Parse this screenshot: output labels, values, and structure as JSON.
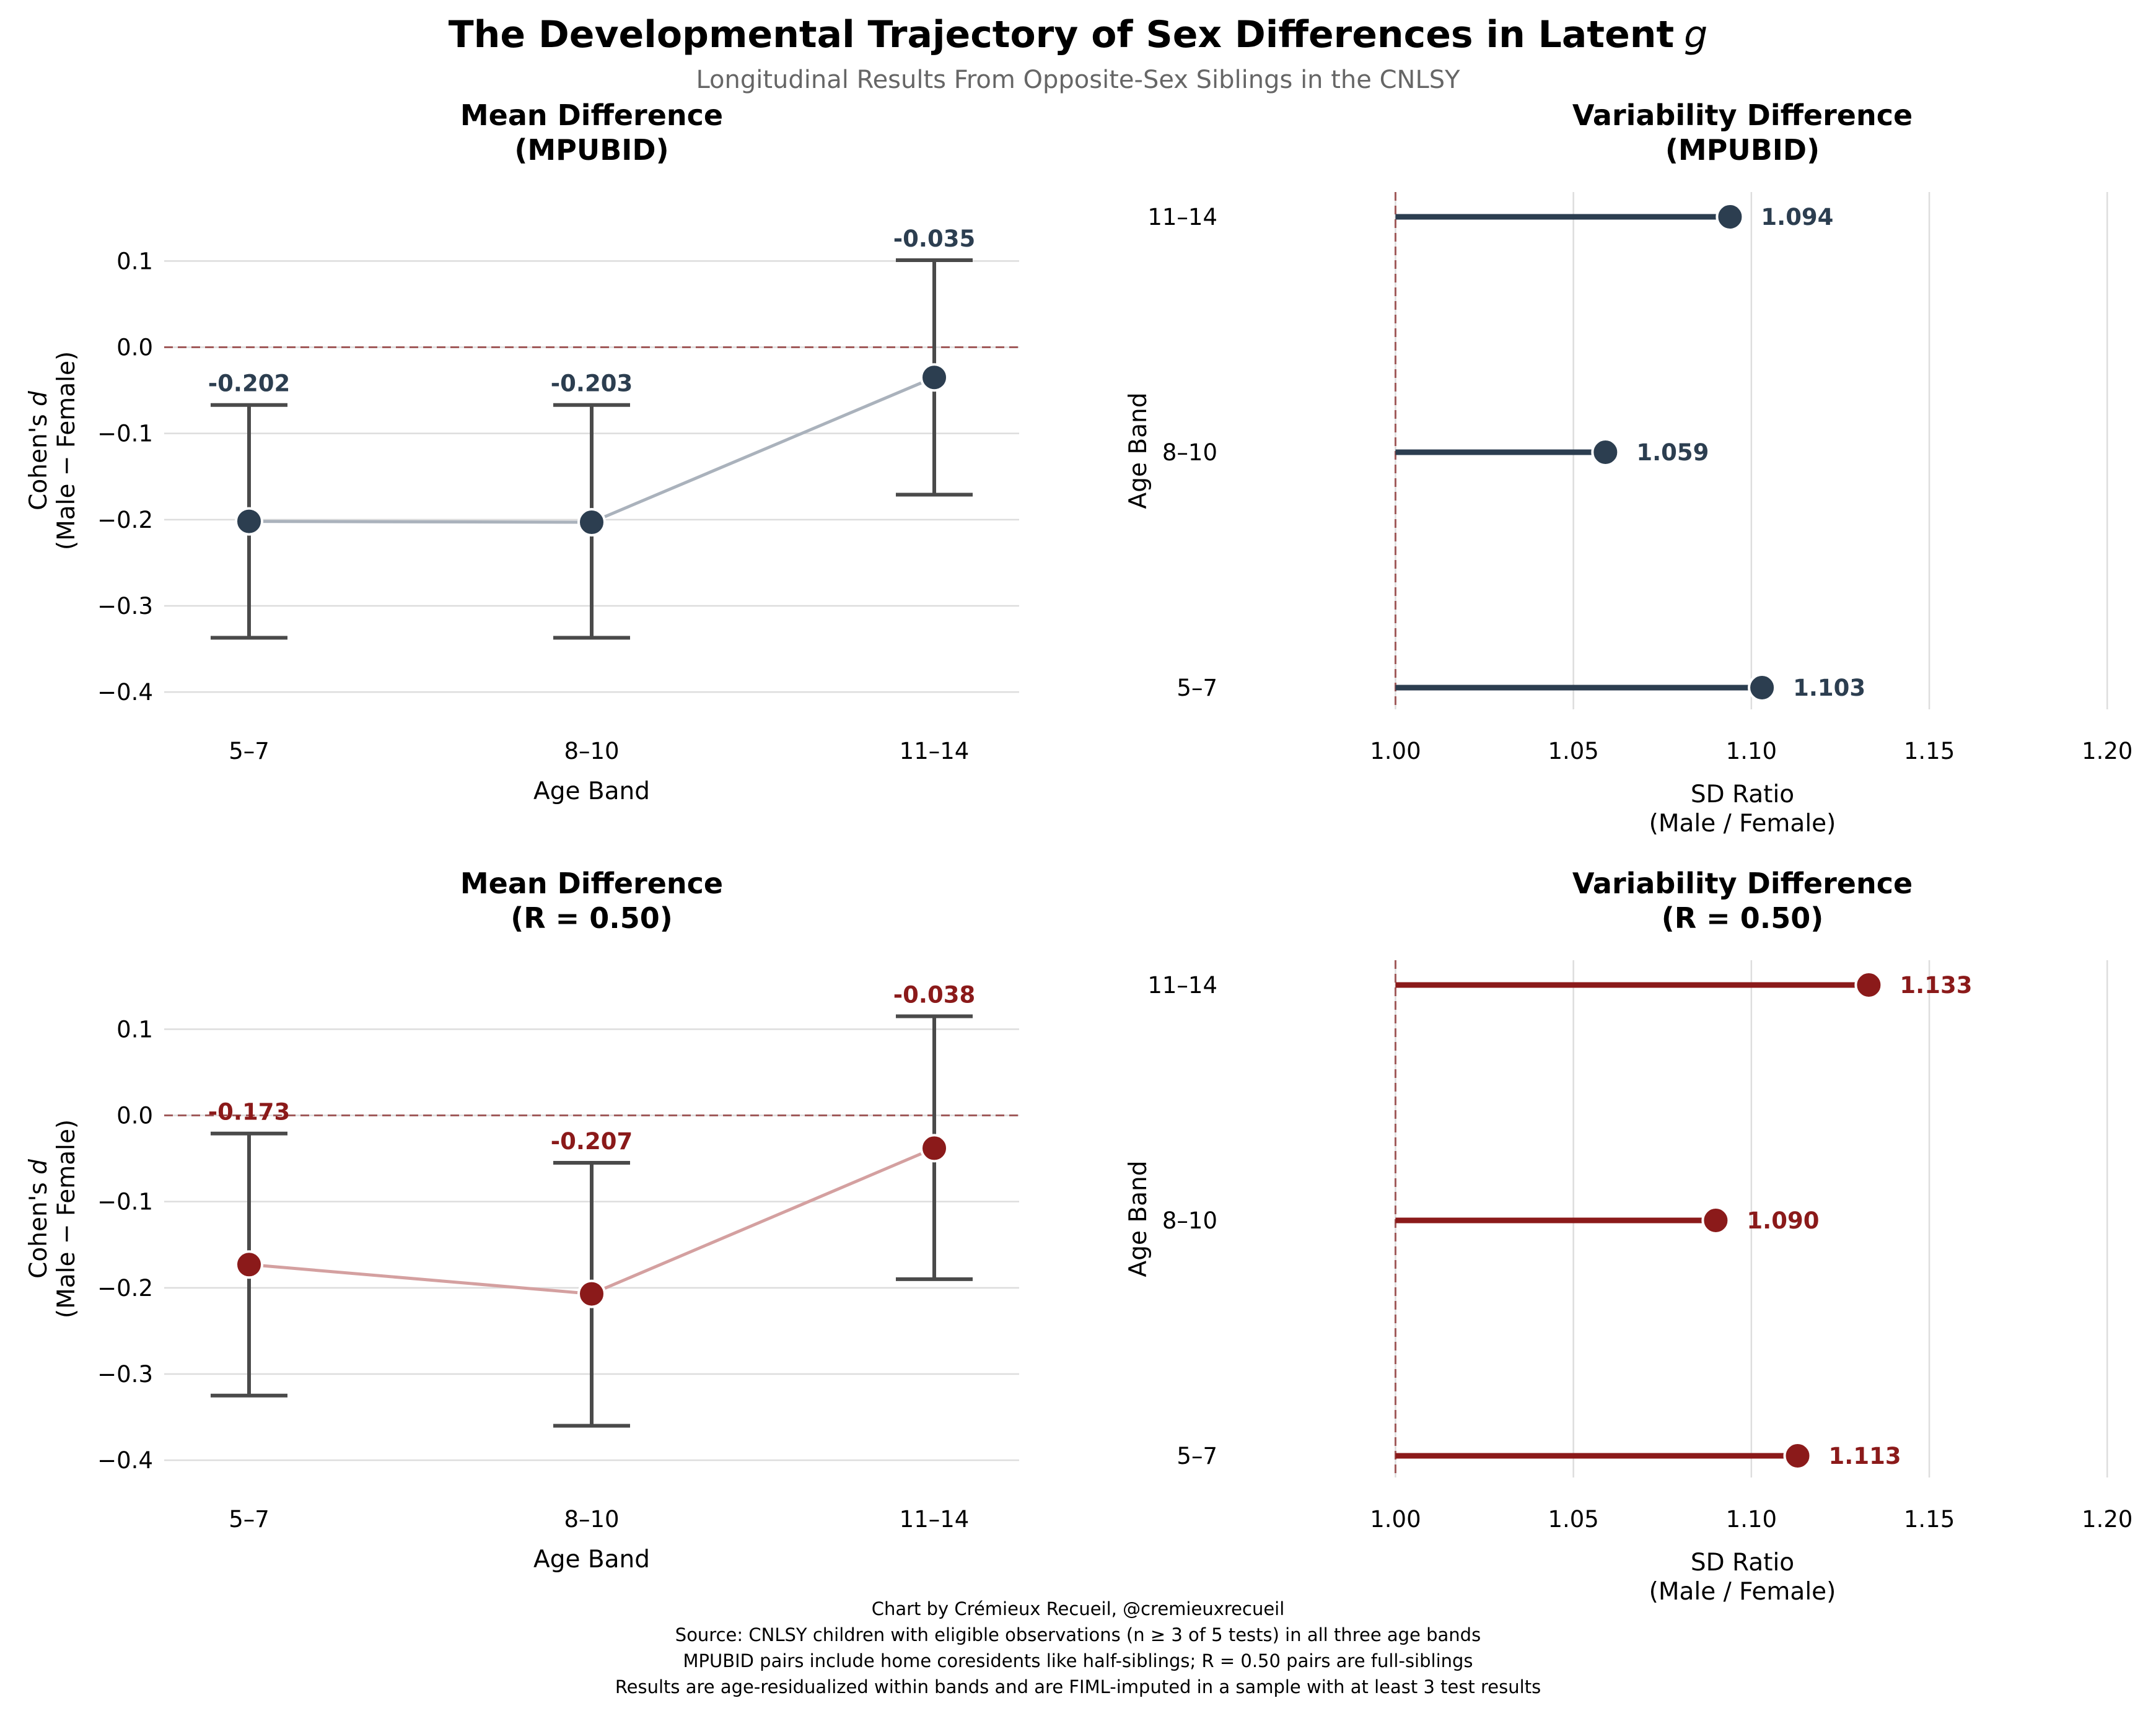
{
  "figure": {
    "title": "The Developmental Trajectory of Sex Differences in Latent",
    "title_symbol": "g",
    "subtitle": "Longitudinal Results From Opposite-Sex Siblings in the CNLSY",
    "footer": [
      "Chart by Crémieux Recueil, @cremieuxrecueil",
      "Source: CNLSY children with eligible observations (n ≥ 3 of 5 tests) in all three age bands",
      "MPUBID pairs include home coresidents like half-siblings; R = 0.50 pairs are full-siblings",
      "Results are age-residualized within bands and are FIML-imputed in a sample with at least 3 test results"
    ]
  },
  "colors": {
    "mpubid": "#2c3e50",
    "mpubid_line": "#aab2bc",
    "r050": "#8b1a1a",
    "r050_line": "#d4a0a0",
    "errorbar": "#4a4a4a",
    "grid": "#dddddd",
    "refline": "#a05a5a",
    "subtitle": "#666666"
  },
  "chart_data": [
    {
      "type": "line",
      "title_line1": "Mean Difference",
      "title_line2": "(MPUBID)",
      "xlabel": "Age Band",
      "ylabel_line1": "Cohen's",
      "ylabel_symbol": "d",
      "ylabel_line2": "(Male − Female)",
      "categories": [
        "5–7",
        "8–10",
        "11–14"
      ],
      "values": [
        -0.202,
        -0.203,
        -0.035
      ],
      "value_labels": [
        "-0.202",
        "-0.203",
        "-0.035"
      ],
      "ci_low": [
        -0.337,
        -0.337,
        -0.171
      ],
      "ci_high": [
        -0.067,
        -0.067,
        0.101
      ],
      "ylim": [
        -0.42,
        0.18
      ],
      "yticks": [
        -0.4,
        -0.3,
        -0.2,
        -0.1,
        0.0,
        0.1
      ],
      "ytick_labels": [
        "−0.4",
        "−0.3",
        "−0.2",
        "−0.1",
        "0.0",
        "0.1"
      ],
      "reference_line": 0,
      "series_color": "mpubid"
    },
    {
      "type": "lollipop",
      "title_line1": "Variability Difference",
      "title_line2": "(MPUBID)",
      "xlabel_line1": "SD Ratio",
      "xlabel_line2": "(Male / Female)",
      "ylabel": "Age Band",
      "categories": [
        "11–14",
        "8–10",
        "5–7"
      ],
      "values": [
        1.094,
        1.059,
        1.103
      ],
      "value_labels": [
        "1.094",
        "1.059",
        "1.103"
      ],
      "xlim": [
        0.99,
        1.205
      ],
      "xticks": [
        1.0,
        1.05,
        1.1,
        1.15,
        1.2
      ],
      "xtick_labels": [
        "1.00",
        "1.05",
        "1.10",
        "1.15",
        "1.20"
      ],
      "reference_line": 1.0,
      "series_color": "mpubid"
    },
    {
      "type": "line",
      "title_line1": "Mean Difference",
      "title_line2": "(R = 0.50)",
      "xlabel": "Age Band",
      "ylabel_line1": "Cohen's",
      "ylabel_symbol": "d",
      "ylabel_line2": "(Male − Female)",
      "categories": [
        "5–7",
        "8–10",
        "11–14"
      ],
      "values": [
        -0.173,
        -0.207,
        -0.038
      ],
      "value_labels": [
        "-0.173",
        "-0.207",
        "-0.038"
      ],
      "ci_low": [
        -0.325,
        -0.36,
        -0.19
      ],
      "ci_high": [
        -0.021,
        -0.055,
        0.115
      ],
      "ylim": [
        -0.42,
        0.18
      ],
      "yticks": [
        -0.4,
        -0.3,
        -0.2,
        -0.1,
        0.0,
        0.1
      ],
      "ytick_labels": [
        "−0.4",
        "−0.3",
        "−0.2",
        "−0.1",
        "0.0",
        "0.1"
      ],
      "reference_line": 0,
      "series_color": "r050"
    },
    {
      "type": "lollipop",
      "title_line1": "Variability Difference",
      "title_line2": "(R = 0.50)",
      "xlabel_line1": "SD Ratio",
      "xlabel_line2": "(Male / Female)",
      "ylabel": "Age Band",
      "categories": [
        "11–14",
        "8–10",
        "5–7"
      ],
      "values": [
        1.133,
        1.09,
        1.113
      ],
      "value_labels": [
        "1.133",
        "1.090",
        "1.113"
      ],
      "xlim": [
        0.99,
        1.205
      ],
      "xticks": [
        1.0,
        1.05,
        1.1,
        1.15,
        1.2
      ],
      "xtick_labels": [
        "1.00",
        "1.05",
        "1.10",
        "1.15",
        "1.20"
      ],
      "reference_line": 1.0,
      "series_color": "r050"
    }
  ]
}
